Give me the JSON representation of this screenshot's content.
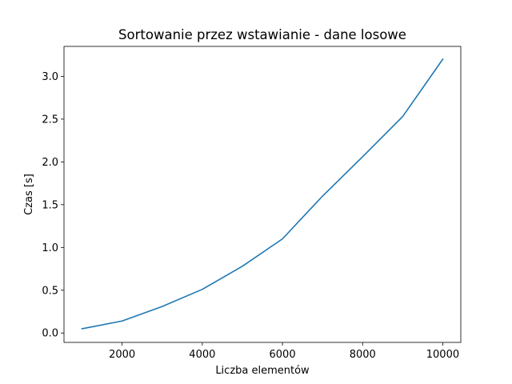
{
  "chart_data": {
    "type": "line",
    "title": "Sortowanie przez wstawianie - dane losowe",
    "xlabel": "Liczba elementów",
    "ylabel": "Czas [s]",
    "xlim": [
      550,
      10450
    ],
    "ylim": [
      -0.11,
      3.35
    ],
    "xticks": [
      2000,
      4000,
      6000,
      8000,
      10000
    ],
    "yticks": [
      0.0,
      0.5,
      1.0,
      1.5,
      2.0,
      2.5,
      3.0
    ],
    "xtick_labels": [
      "2000",
      "4000",
      "6000",
      "8000",
      "10000"
    ],
    "ytick_labels": [
      "0.0",
      "0.5",
      "1.0",
      "1.5",
      "2.0",
      "2.5",
      "3.0"
    ],
    "grid": false,
    "legend": null,
    "series": [
      {
        "color": "#1f77b4",
        "x": [
          1000,
          2000,
          3000,
          4000,
          5000,
          6000,
          7000,
          8000,
          9000,
          10000
        ],
        "y": [
          0.05,
          0.14,
          0.31,
          0.51,
          0.78,
          1.1,
          1.6,
          2.06,
          2.53,
          3.2
        ]
      }
    ]
  }
}
